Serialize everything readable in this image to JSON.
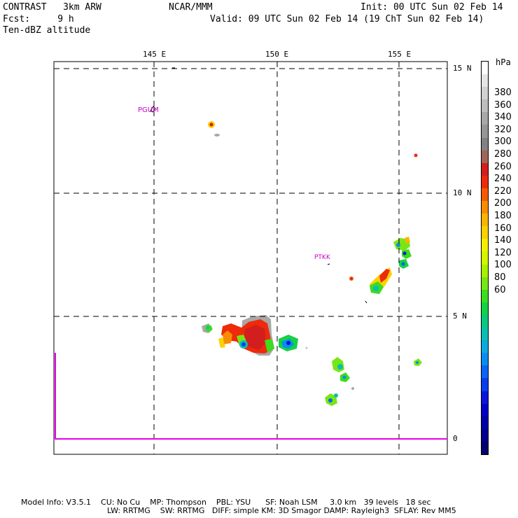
{
  "header": {
    "model_name": "CONTRAST   3km ARW",
    "org": "NCAR/MMM",
    "init": "Init: 00 UTC Sun 02 Feb 14",
    "fcst_label": "Fcst:     9 h",
    "valid": "Valid: 09 UTC Sun 02 Feb 14 (19 ChT Sun 02 Feb 14)",
    "field": "Ten-dBZ altitude"
  },
  "map": {
    "lon_labels": [
      "145 E",
      "150 E",
      "155 E"
    ],
    "lat_labels": [
      "15 N",
      "10 N",
      "5 N"
    ],
    "inset_zero_label": "0",
    "station_labels": [
      "PGUM",
      "PTKK"
    ],
    "inset_line_color": "#e800e8",
    "station_label_color": "#cc00cc"
  },
  "colorbar": {
    "unit": "hPa",
    "tick_labels": [
      "380",
      "360",
      "340",
      "320",
      "300",
      "280",
      "260",
      "240",
      "220",
      "200",
      "180",
      "160",
      "140",
      "120",
      "100",
      "80",
      "60"
    ],
    "colors": [
      "#ffffff",
      "#e6e6e6",
      "#d2d2d2",
      "#bebebe",
      "#a8a8a8",
      "#969696",
      "#828282",
      "#a06458",
      "#d21e1e",
      "#ee2a0a",
      "#f55a00",
      "#f98c00",
      "#fbb400",
      "#fad200",
      "#f5ee00",
      "#d2f500",
      "#a8f000",
      "#78e614",
      "#3cdc1e",
      "#14d246",
      "#0ac87d",
      "#0abeb4",
      "#0aaadc",
      "#0a8cf0",
      "#0a64f5",
      "#0a3cf0",
      "#0a14dc",
      "#0000c8",
      "#0000a8",
      "#00008c",
      "#000070"
    ]
  },
  "footer": {
    "line1": "Model Info: V3.5.1    CU: No Cu    MP: Thompson    PBL: YSU      SF: Noah LSM     3.0 km   39 levels   18 sec",
    "line2": "LW: RRTMG    SW: RRTMG   DIFF: simple KM: 3D Smagor DAMP: Rayleigh3  SFLAY: Rev MM5"
  }
}
